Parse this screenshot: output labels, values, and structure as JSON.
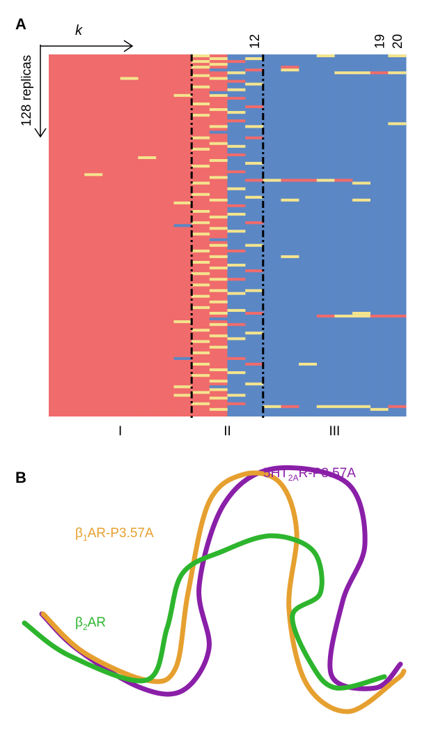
{
  "panel_a": {
    "label": "A",
    "x_label": "k",
    "y_label": "128 replicas",
    "rows": 128,
    "state_colors": [
      "#f06b6b",
      "#f4e48e",
      "#5b87c5"
    ],
    "base_state_by_column": [
      0,
      0,
      0,
      0,
      0,
      0,
      0,
      0,
      0,
      0,
      2,
      2,
      2,
      2,
      2,
      2,
      2,
      2,
      2,
      2
    ],
    "column_ticks": [
      12,
      19,
      20
    ],
    "boundaries": [
      8,
      12
    ],
    "regions": [
      {
        "label": "I",
        "start": 1,
        "end": 8
      },
      {
        "label": "II",
        "start": 9,
        "end": 12
      },
      {
        "label": "III",
        "start": 13,
        "end": 20
      }
    ],
    "exceptions": [
      {
        "col": 3,
        "state": 1,
        "rows": [
          43
        ]
      },
      {
        "col": 5,
        "state": 1,
        "rows": [
          9
        ]
      },
      {
        "col": 6,
        "state": 1,
        "rows": [
          37
        ]
      },
      {
        "col": 8,
        "state": 1,
        "rows": [
          15,
          53,
          95,
          118,
          121
        ]
      },
      {
        "col": 8,
        "state": 2,
        "rows": [
          61,
          108
        ]
      },
      {
        "col": 9,
        "state": 1,
        "rows": [
          1,
          3,
          5,
          8,
          12,
          18,
          22,
          30,
          34,
          40,
          46,
          50,
          56,
          60,
          64,
          70,
          74,
          78,
          82,
          86,
          90,
          98,
          102,
          106,
          110,
          114,
          120,
          124
        ]
      },
      {
        "col": 10,
        "state": 1,
        "rows": [
          2,
          4,
          9,
          15,
          20,
          26,
          32,
          38,
          44,
          52,
          58,
          62,
          68,
          72,
          76,
          80,
          84,
          88,
          92,
          96,
          100,
          104,
          112,
          116,
          119,
          122,
          126
        ]
      },
      {
        "col": 10,
        "state": 2,
        "rows": [
          6,
          14,
          28,
          66,
          94,
          118
        ]
      },
      {
        "col": 11,
        "state": 0,
        "rows": [
          3,
          10,
          16,
          24,
          36,
          42,
          54,
          70,
          80,
          96,
          108,
          124
        ]
      },
      {
        "col": 11,
        "state": 1,
        "rows": [
          7,
          13,
          21,
          33,
          48,
          57,
          63,
          75,
          85,
          91,
          101,
          113,
          121
        ]
      },
      {
        "col": 12,
        "state": 0,
        "rows": [
          6,
          19,
          30,
          45,
          60,
          77,
          92,
          110
        ]
      },
      {
        "col": 12,
        "state": 1,
        "rows": [
          2,
          11,
          26,
          39,
          51,
          68,
          84,
          99,
          117
        ]
      },
      {
        "col": 13,
        "state": 1,
        "rows": [
          45,
          125
        ]
      },
      {
        "col": 14,
        "state": 0,
        "rows": [
          5,
          45,
          125
        ]
      },
      {
        "col": 14,
        "state": 1,
        "rows": [
          6,
          52,
          72
        ]
      },
      {
        "col": 15,
        "state": 0,
        "rows": [
          45
        ]
      },
      {
        "col": 15,
        "state": 1,
        "rows": [
          110
        ]
      },
      {
        "col": 16,
        "state": 1,
        "rows": [
          1,
          45,
          125
        ]
      },
      {
        "col": 16,
        "state": 0,
        "rows": [
          93
        ]
      },
      {
        "col": 17,
        "state": 1,
        "rows": [
          7,
          93,
          125
        ]
      },
      {
        "col": 17,
        "state": 0,
        "rows": [
          45
        ]
      },
      {
        "col": 18,
        "state": 1,
        "rows": [
          7,
          46,
          52,
          92,
          93,
          125
        ]
      },
      {
        "col": 19,
        "state": 0,
        "rows": [
          7,
          93
        ]
      },
      {
        "col": 19,
        "state": 1,
        "rows": [
          126
        ]
      },
      {
        "col": 20,
        "state": 1,
        "rows": [
          1,
          7,
          25
        ]
      },
      {
        "col": 20,
        "state": 0,
        "rows": [
          93,
          125
        ]
      }
    ]
  },
  "panel_b": {
    "label": "B",
    "structures": [
      {
        "prefix": "5HT",
        "sub": "2A",
        "suffix": "R-P3.57A",
        "color": "#8a1fa8"
      },
      {
        "prefix": "β",
        "sub": "1",
        "suffix": "AR-P3.57A",
        "color": "#e6a030"
      },
      {
        "prefix": "β",
        "sub": "2",
        "suffix": "AR",
        "color": "#2db52d"
      }
    ]
  }
}
